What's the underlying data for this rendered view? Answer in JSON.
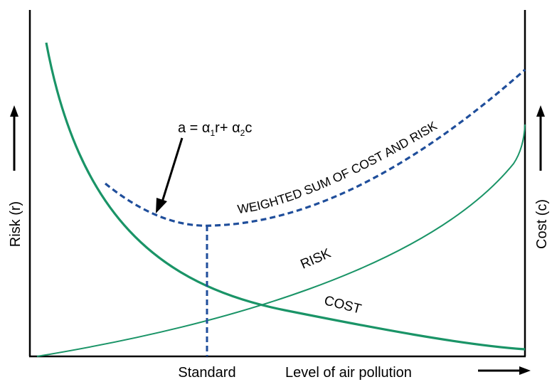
{
  "colors": {
    "curve_green": "#1a9467",
    "dashed_blue": "#1f4e9b",
    "axis": "#000000"
  },
  "labels": {
    "y_left": "Risk (r)",
    "y_right": "Cost (c)",
    "x_standard": "Standard",
    "x_axis": "Level of air pollution",
    "risk": "RISK",
    "cost": "COST",
    "weighted": "WEIGHTED SUM OF COST AND RISK",
    "formula": {
      "a": "a = α",
      "sub1": "1",
      "mid": "r+ α",
      "sub2": "2",
      "end": "c"
    }
  }
}
